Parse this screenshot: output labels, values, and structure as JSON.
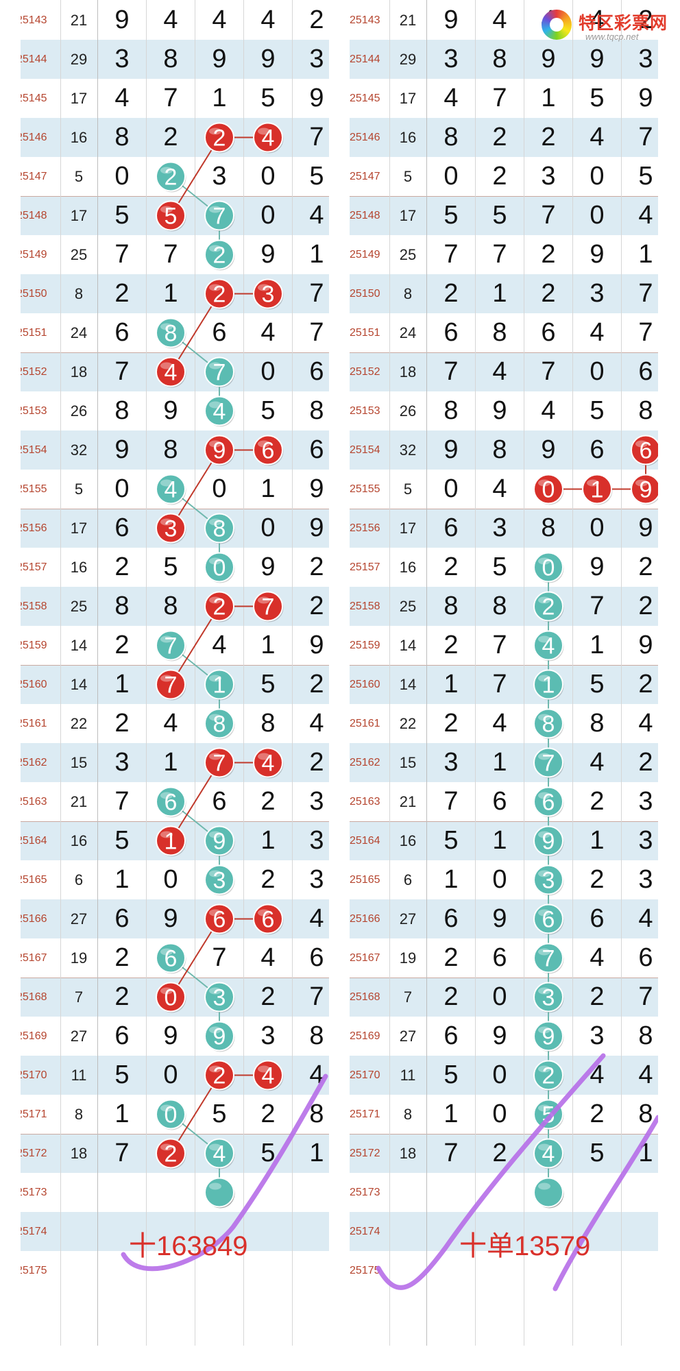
{
  "logo": {
    "name": "特区彩票网",
    "url": "www.tqcp.net"
  },
  "rows": [
    {
      "issue": "25143",
      "sum": "21",
      "digits": [
        "9",
        "4",
        "4",
        "4",
        "2"
      ]
    },
    {
      "issue": "25144",
      "sum": "29",
      "digits": [
        "3",
        "8",
        "9",
        "9",
        "3"
      ]
    },
    {
      "issue": "25145",
      "sum": "17",
      "digits": [
        "4",
        "7",
        "1",
        "5",
        "9"
      ]
    },
    {
      "issue": "25146",
      "sum": "16",
      "digits": [
        "8",
        "2",
        "2",
        "4",
        "7"
      ]
    },
    {
      "issue": "25147",
      "sum": "5",
      "digits": [
        "0",
        "2",
        "3",
        "0",
        "5"
      ]
    },
    {
      "issue": "25148",
      "sum": "17",
      "digits": [
        "5",
        "5",
        "7",
        "0",
        "4"
      ]
    },
    {
      "issue": "25149",
      "sum": "25",
      "digits": [
        "7",
        "7",
        "2",
        "9",
        "1"
      ]
    },
    {
      "issue": "25150",
      "sum": "8",
      "digits": [
        "2",
        "1",
        "2",
        "3",
        "7"
      ]
    },
    {
      "issue": "25151",
      "sum": "24",
      "digits": [
        "6",
        "8",
        "6",
        "4",
        "7"
      ]
    },
    {
      "issue": "25152",
      "sum": "18",
      "digits": [
        "7",
        "4",
        "7",
        "0",
        "6"
      ]
    },
    {
      "issue": "25153",
      "sum": "26",
      "digits": [
        "8",
        "9",
        "4",
        "5",
        "8"
      ]
    },
    {
      "issue": "25154",
      "sum": "32",
      "digits": [
        "9",
        "8",
        "9",
        "6",
        "6"
      ]
    },
    {
      "issue": "25155",
      "sum": "5",
      "digits": [
        "0",
        "4",
        "0",
        "1",
        "9"
      ]
    },
    {
      "issue": "25156",
      "sum": "17",
      "digits": [
        "6",
        "3",
        "8",
        "0",
        "9"
      ]
    },
    {
      "issue": "25157",
      "sum": "16",
      "digits": [
        "2",
        "5",
        "0",
        "9",
        "2"
      ]
    },
    {
      "issue": "25158",
      "sum": "25",
      "digits": [
        "8",
        "8",
        "2",
        "7",
        "2"
      ]
    },
    {
      "issue": "25159",
      "sum": "14",
      "digits": [
        "2",
        "7",
        "4",
        "1",
        "9"
      ]
    },
    {
      "issue": "25160",
      "sum": "14",
      "digits": [
        "1",
        "7",
        "1",
        "5",
        "2"
      ]
    },
    {
      "issue": "25161",
      "sum": "22",
      "digits": [
        "2",
        "4",
        "8",
        "8",
        "4"
      ]
    },
    {
      "issue": "25162",
      "sum": "15",
      "digits": [
        "3",
        "1",
        "7",
        "4",
        "2"
      ]
    },
    {
      "issue": "25163",
      "sum": "21",
      "digits": [
        "7",
        "6",
        "6",
        "2",
        "3"
      ]
    },
    {
      "issue": "25164",
      "sum": "16",
      "digits": [
        "5",
        "1",
        "9",
        "1",
        "3"
      ]
    },
    {
      "issue": "25165",
      "sum": "6",
      "digits": [
        "1",
        "0",
        "3",
        "2",
        "3"
      ]
    },
    {
      "issue": "25166",
      "sum": "27",
      "digits": [
        "6",
        "9",
        "6",
        "6",
        "4"
      ]
    },
    {
      "issue": "25167",
      "sum": "19",
      "digits": [
        "2",
        "6",
        "7",
        "4",
        "6"
      ]
    },
    {
      "issue": "25168",
      "sum": "7",
      "digits": [
        "2",
        "0",
        "3",
        "2",
        "7"
      ]
    },
    {
      "issue": "25169",
      "sum": "27",
      "digits": [
        "6",
        "9",
        "9",
        "3",
        "8"
      ]
    },
    {
      "issue": "25170",
      "sum": "11",
      "digits": [
        "5",
        "0",
        "2",
        "4",
        "4"
      ]
    },
    {
      "issue": "25171",
      "sum": "8",
      "digits": [
        "1",
        "0",
        "5",
        "2",
        "8"
      ]
    },
    {
      "issue": "25172",
      "sum": "18",
      "digits": [
        "7",
        "2",
        "4",
        "5",
        "1"
      ]
    },
    {
      "issue": "25173",
      "sum": "",
      "digits": [
        "",
        "",
        "",
        "",
        ""
      ]
    },
    {
      "issue": "25174",
      "sum": "",
      "digits": [
        "",
        "",
        "",
        "",
        ""
      ]
    },
    {
      "issue": "25175",
      "sum": "",
      "digits": [
        "",
        "",
        "",
        "",
        ""
      ]
    }
  ],
  "panels": [
    {
      "note": "十163849",
      "red_balls": [
        [
          3,
          2
        ],
        [
          3,
          3
        ],
        [
          5,
          1
        ],
        [
          7,
          2
        ],
        [
          7,
          3
        ],
        [
          9,
          1
        ],
        [
          11,
          2
        ],
        [
          11,
          3
        ],
        [
          13,
          1
        ],
        [
          15,
          2
        ],
        [
          15,
          3
        ],
        [
          17,
          1
        ],
        [
          19,
          2
        ],
        [
          19,
          3
        ],
        [
          21,
          1
        ],
        [
          23,
          2
        ],
        [
          23,
          3
        ],
        [
          25,
          1
        ],
        [
          27,
          2
        ],
        [
          27,
          3
        ],
        [
          29,
          1
        ]
      ],
      "green_balls": [
        [
          4,
          1
        ],
        [
          5,
          2
        ],
        [
          6,
          2
        ],
        [
          8,
          1
        ],
        [
          9,
          2
        ],
        [
          10,
          2
        ],
        [
          12,
          1
        ],
        [
          13,
          2
        ],
        [
          14,
          2
        ],
        [
          16,
          1
        ],
        [
          17,
          2
        ],
        [
          18,
          2
        ],
        [
          20,
          1
        ],
        [
          21,
          2
        ],
        [
          22,
          2
        ],
        [
          24,
          1
        ],
        [
          25,
          2
        ],
        [
          26,
          2
        ],
        [
          28,
          1
        ],
        [
          29,
          2
        ],
        [
          30,
          2
        ]
      ],
      "red_links": [
        [
          [
            3,
            2
          ],
          [
            3,
            3
          ]
        ],
        [
          [
            3,
            2
          ],
          [
            5,
            1
          ]
        ],
        [
          [
            7,
            2
          ],
          [
            7,
            3
          ]
        ],
        [
          [
            7,
            2
          ],
          [
            9,
            1
          ]
        ],
        [
          [
            11,
            2
          ],
          [
            11,
            3
          ]
        ],
        [
          [
            11,
            2
          ],
          [
            13,
            1
          ]
        ],
        [
          [
            15,
            2
          ],
          [
            15,
            3
          ]
        ],
        [
          [
            15,
            2
          ],
          [
            17,
            1
          ]
        ],
        [
          [
            19,
            2
          ],
          [
            19,
            3
          ]
        ],
        [
          [
            19,
            2
          ],
          [
            21,
            1
          ]
        ],
        [
          [
            23,
            2
          ],
          [
            23,
            3
          ]
        ],
        [
          [
            23,
            2
          ],
          [
            25,
            1
          ]
        ],
        [
          [
            27,
            2
          ],
          [
            27,
            3
          ]
        ],
        [
          [
            27,
            2
          ],
          [
            29,
            1
          ]
        ]
      ],
      "green_links": [
        [
          [
            4,
            1
          ],
          [
            5,
            2
          ]
        ],
        [
          [
            5,
            2
          ],
          [
            6,
            2
          ]
        ],
        [
          [
            8,
            1
          ],
          [
            9,
            2
          ]
        ],
        [
          [
            9,
            2
          ],
          [
            10,
            2
          ]
        ],
        [
          [
            12,
            1
          ],
          [
            13,
            2
          ]
        ],
        [
          [
            13,
            2
          ],
          [
            14,
            2
          ]
        ],
        [
          [
            16,
            1
          ],
          [
            17,
            2
          ]
        ],
        [
          [
            17,
            2
          ],
          [
            18,
            2
          ]
        ],
        [
          [
            20,
            1
          ],
          [
            21,
            2
          ]
        ],
        [
          [
            21,
            2
          ],
          [
            22,
            2
          ]
        ],
        [
          [
            24,
            1
          ],
          [
            25,
            2
          ]
        ],
        [
          [
            25,
            2
          ],
          [
            26,
            2
          ]
        ],
        [
          [
            28,
            1
          ],
          [
            29,
            2
          ]
        ],
        [
          [
            29,
            2
          ],
          [
            30,
            2
          ]
        ]
      ]
    },
    {
      "note": "十单13579",
      "red_balls": [
        [
          11,
          4
        ],
        [
          12,
          2
        ],
        [
          12,
          3
        ],
        [
          12,
          4
        ]
      ],
      "green_balls": [
        [
          14,
          2
        ],
        [
          15,
          2
        ],
        [
          16,
          2
        ],
        [
          17,
          2
        ],
        [
          18,
          2
        ],
        [
          19,
          2
        ],
        [
          20,
          2
        ],
        [
          21,
          2
        ],
        [
          22,
          2
        ],
        [
          23,
          2
        ],
        [
          24,
          2
        ],
        [
          25,
          2
        ],
        [
          26,
          2
        ],
        [
          27,
          2
        ],
        [
          28,
          2
        ],
        [
          29,
          2
        ],
        [
          30,
          2
        ]
      ],
      "red_links": [
        [
          [
            12,
            2
          ],
          [
            12,
            3
          ]
        ],
        [
          [
            12,
            3
          ],
          [
            12,
            4
          ]
        ],
        [
          [
            11,
            4
          ],
          [
            12,
            4
          ]
        ]
      ],
      "green_links": [
        [
          [
            14,
            2
          ],
          [
            30,
            2
          ]
        ]
      ]
    }
  ],
  "colors": {
    "red_ball": "#d8302a",
    "green_ball": "#5bbcb2",
    "red_line": "#c0392b",
    "green_line": "#6fb8ae",
    "stroke": "#b66ee8"
  }
}
